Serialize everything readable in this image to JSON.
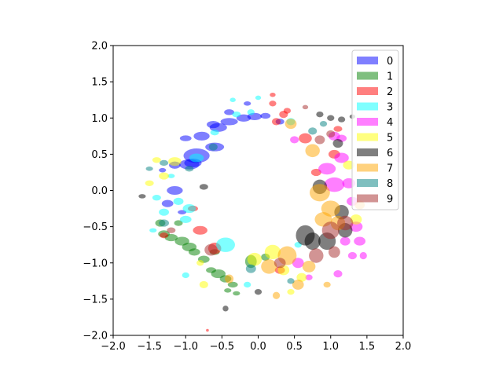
{
  "chart_data": {
    "type": "scatter",
    "title": "",
    "xlabel": "",
    "ylabel": "",
    "xlim": [
      -2.0,
      2.0
    ],
    "ylim": [
      -2.0,
      2.0
    ],
    "xticks": [
      "−2.0",
      "−1.5",
      "−1.0",
      "−0.5",
      "0.0",
      "0.5",
      "1.0",
      "1.5",
      "2.0"
    ],
    "yticks": [
      "−2.0",
      "−1.5",
      "−1.0",
      "−0.5",
      "0.0",
      "0.5",
      "1.0",
      "1.5",
      "2.0"
    ],
    "grid": false,
    "legend": {
      "placement": "top-right",
      "entries": [
        {
          "label": "0",
          "color": "#0000ff"
        },
        {
          "label": "1",
          "color": "#008000"
        },
        {
          "label": "2",
          "color": "#ff0000"
        },
        {
          "label": "3",
          "color": "#00ffff"
        },
        {
          "label": "4",
          "color": "#ff00ff"
        },
        {
          "label": "5",
          "color": "#ffff00"
        },
        {
          "label": "6",
          "color": "#000000"
        },
        {
          "label": "7",
          "color": "#ffa500"
        },
        {
          "label": "8",
          "color": "#008080"
        },
        {
          "label": "9",
          "color": "#a52a2a"
        }
      ]
    },
    "series": [
      {
        "name": "0",
        "color": "#0000ff",
        "points": [
          [
            -0.85,
            0.48,
            0.18,
            0.1
          ],
          [
            -0.95,
            0.36,
            0.14,
            0.07
          ],
          [
            -0.6,
            0.6,
            0.13,
            0.06
          ],
          [
            -0.78,
            0.75,
            0.11,
            0.06
          ],
          [
            -0.55,
            0.87,
            0.12,
            0.06
          ],
          [
            -0.4,
            0.95,
            0.12,
            0.05
          ],
          [
            -0.2,
            1.0,
            0.1,
            0.05
          ],
          [
            -0.05,
            1.02,
            0.1,
            0.05
          ],
          [
            -0.62,
            0.91,
            0.09,
            0.05
          ],
          [
            -1.0,
            0.72,
            0.08,
            0.04
          ],
          [
            -0.15,
            1.2,
            0.05,
            0.03
          ],
          [
            -1.15,
            0.35,
            0.08,
            0.05
          ],
          [
            -1.15,
            0.0,
            0.11,
            0.06
          ],
          [
            -1.25,
            -0.18,
            0.08,
            0.05
          ],
          [
            -1.05,
            -0.3,
            0.06,
            0.03
          ],
          [
            -0.9,
            0.38,
            0.12,
            0.06
          ],
          [
            -0.4,
            1.08,
            0.07,
            0.04
          ],
          [
            0.1,
            1.03,
            0.07,
            0.04
          ],
          [
            0.3,
            0.95,
            0.06,
            0.04
          ],
          [
            -1.32,
            0.28,
            0.05,
            0.03
          ]
        ]
      },
      {
        "name": "1",
        "color": "#008000",
        "points": [
          [
            -1.05,
            -0.7,
            0.1,
            0.06
          ],
          [
            -0.95,
            -0.78,
            0.1,
            0.06
          ],
          [
            -0.88,
            -0.85,
            0.08,
            0.05
          ],
          [
            -1.2,
            -0.65,
            0.09,
            0.05
          ],
          [
            -1.3,
            -0.6,
            0.08,
            0.05
          ],
          [
            -1.35,
            -0.45,
            0.07,
            0.05
          ],
          [
            -0.55,
            -1.15,
            0.1,
            0.06
          ],
          [
            -0.45,
            -1.22,
            0.08,
            0.05
          ],
          [
            -0.35,
            -1.3,
            0.07,
            0.04
          ],
          [
            -0.65,
            -1.1,
            0.07,
            0.04
          ],
          [
            -0.1,
            -0.98,
            0.08,
            0.09
          ],
          [
            0.1,
            -0.92,
            0.06,
            0.05
          ],
          [
            -0.75,
            -0.95,
            0.08,
            0.05
          ],
          [
            -0.3,
            -1.42,
            0.05,
            0.03
          ],
          [
            -1.1,
            -0.45,
            0.06,
            0.04
          ],
          [
            -0.6,
            -0.85,
            0.07,
            0.04
          ],
          [
            -0.42,
            -1.38,
            0.05,
            0.03
          ]
        ]
      },
      {
        "name": "2",
        "color": "#ff0000",
        "points": [
          [
            -0.8,
            -0.55,
            0.1,
            0.06
          ],
          [
            -0.9,
            -0.25,
            0.07,
            0.04
          ],
          [
            -0.6,
            -0.8,
            0.09,
            0.08
          ],
          [
            0.35,
            1.05,
            0.06,
            0.05
          ],
          [
            0.25,
            0.95,
            0.06,
            0.05
          ],
          [
            0.2,
            1.2,
            0.05,
            0.04
          ],
          [
            0.4,
            1.1,
            0.05,
            0.04
          ],
          [
            0.65,
            0.72,
            0.09,
            0.07
          ],
          [
            -1.3,
            -0.62,
            0.06,
            0.04
          ],
          [
            0.3,
            -1.1,
            0.07,
            0.05
          ],
          [
            1.05,
            0.5,
            0.08,
            0.06
          ],
          [
            1.1,
            0.85,
            0.06,
            0.04
          ],
          [
            0.8,
            0.25,
            0.07,
            0.05
          ],
          [
            -0.7,
            -1.93,
            0.02,
            0.02
          ],
          [
            0.2,
            1.32,
            0.04,
            0.03
          ]
        ]
      },
      {
        "name": "3",
        "color": "#00ffff",
        "points": [
          [
            -0.45,
            -0.75,
            0.13,
            0.1
          ],
          [
            -0.95,
            -0.25,
            0.09,
            0.06
          ],
          [
            -1.1,
            -0.15,
            0.07,
            0.05
          ],
          [
            -1.3,
            -0.3,
            0.07,
            0.05
          ],
          [
            -1.0,
            -0.4,
            0.08,
            0.05
          ],
          [
            -1.4,
            -0.1,
            0.06,
            0.04
          ],
          [
            -1.45,
            -0.55,
            0.05,
            0.03
          ],
          [
            -0.85,
            0.45,
            0.1,
            0.06
          ],
          [
            -0.3,
            1.05,
            0.06,
            0.04
          ],
          [
            -0.1,
            1.08,
            0.05,
            0.04
          ],
          [
            0.45,
            0.95,
            0.06,
            0.05
          ],
          [
            -1.0,
            -1.17,
            0.05,
            0.04
          ],
          [
            -0.15,
            -1.3,
            0.05,
            0.04
          ],
          [
            0.55,
            -0.75,
            0.05,
            0.04
          ],
          [
            -0.6,
            0.8,
            0.06,
            0.04
          ],
          [
            -1.2,
            0.2,
            0.05,
            0.03
          ],
          [
            -0.35,
            1.25,
            0.04,
            0.03
          ],
          [
            0.0,
            1.28,
            0.04,
            0.03
          ]
        ]
      },
      {
        "name": "4",
        "color": "#ff00ff",
        "points": [
          [
            1.05,
            0.08,
            0.14,
            0.1
          ],
          [
            0.95,
            0.3,
            0.12,
            0.08
          ],
          [
            1.15,
            0.45,
            0.1,
            0.07
          ],
          [
            1.25,
            0.1,
            0.09,
            0.07
          ],
          [
            1.3,
            -0.15,
            0.08,
            0.06
          ],
          [
            1.35,
            -0.5,
            0.09,
            0.07
          ],
          [
            1.4,
            -0.7,
            0.08,
            0.06
          ],
          [
            1.2,
            -0.7,
            0.07,
            0.06
          ],
          [
            1.05,
            0.75,
            0.08,
            0.06
          ],
          [
            1.15,
            0.72,
            0.07,
            0.05
          ],
          [
            0.55,
            -1.0,
            0.08,
            0.07
          ],
          [
            1.1,
            -1.15,
            0.06,
            0.05
          ],
          [
            0.5,
            0.7,
            0.06,
            0.05
          ],
          [
            1.3,
            -0.9,
            0.06,
            0.05
          ],
          [
            1.45,
            -0.9,
            0.05,
            0.05
          ],
          [
            0.7,
            -1.2,
            0.05,
            0.04
          ]
        ]
      },
      {
        "name": "5",
        "color": "#ffff00",
        "points": [
          [
            0.2,
            -0.85,
            0.11,
            0.1
          ],
          [
            -0.05,
            -0.95,
            0.1,
            0.09
          ],
          [
            0.35,
            -1.1,
            0.08,
            0.07
          ],
          [
            -1.15,
            0.4,
            0.09,
            0.06
          ],
          [
            -1.3,
            0.2,
            0.07,
            0.05
          ],
          [
            -1.5,
            0.1,
            0.06,
            0.04
          ],
          [
            1.25,
            0.35,
            0.08,
            0.06
          ],
          [
            1.35,
            -0.4,
            0.08,
            0.07
          ],
          [
            0.6,
            -1.2,
            0.07,
            0.06
          ],
          [
            -0.75,
            -1.3,
            0.06,
            0.05
          ],
          [
            -0.8,
            -1.0,
            0.05,
            0.04
          ],
          [
            0.45,
            -1.4,
            0.05,
            0.04
          ],
          [
            -1.4,
            0.42,
            0.06,
            0.04
          ]
        ]
      },
      {
        "name": "6",
        "color": "#000000",
        "points": [
          [
            0.65,
            -0.62,
            0.13,
            0.14
          ],
          [
            0.75,
            -0.7,
            0.11,
            0.12
          ],
          [
            0.95,
            -0.7,
            0.12,
            0.12
          ],
          [
            1.2,
            -0.55,
            0.1,
            0.1
          ],
          [
            1.15,
            -0.3,
            0.1,
            0.1
          ],
          [
            0.85,
            0.05,
            0.1,
            0.1
          ],
          [
            1.1,
            0.65,
            0.07,
            0.06
          ],
          [
            0.85,
            1.05,
            0.05,
            0.04
          ],
          [
            1.0,
            1.0,
            0.05,
            0.04
          ],
          [
            1.15,
            0.98,
            0.05,
            0.04
          ],
          [
            0.0,
            -1.4,
            0.05,
            0.04
          ],
          [
            -0.45,
            -1.63,
            0.04,
            0.04
          ],
          [
            -0.75,
            0.05,
            0.06,
            0.04
          ],
          [
            -1.6,
            -0.08,
            0.05,
            0.03
          ],
          [
            1.3,
            1.02,
            0.04,
            0.03
          ]
        ]
      },
      {
        "name": "7",
        "color": "#ffa500",
        "points": [
          [
            0.85,
            -0.03,
            0.14,
            0.12
          ],
          [
            1.0,
            -0.25,
            0.13,
            0.11
          ],
          [
            0.9,
            -0.4,
            0.12,
            0.1
          ],
          [
            0.75,
            0.55,
            0.1,
            0.09
          ],
          [
            0.4,
            -0.9,
            0.13,
            0.13
          ],
          [
            0.15,
            -1.05,
            0.11,
            0.1
          ],
          [
            0.55,
            -1.3,
            0.08,
            0.07
          ],
          [
            1.1,
            -0.45,
            0.1,
            0.1
          ],
          [
            0.45,
            0.92,
            0.08,
            0.07
          ],
          [
            -0.4,
            -1.22,
            0.06,
            0.06
          ],
          [
            0.7,
            -1.05,
            0.09,
            0.08
          ],
          [
            0.25,
            -1.45,
            0.05,
            0.05
          ],
          [
            0.95,
            -1.3,
            0.05,
            0.04
          ],
          [
            1.4,
            -0.2,
            0.07,
            0.06
          ]
        ]
      },
      {
        "name": "8",
        "color": "#008080",
        "points": [
          [
            -0.62,
            0.6,
            0.06,
            0.05
          ],
          [
            -1.3,
            -0.45,
            0.07,
            0.05
          ],
          [
            -1.3,
            0.38,
            0.06,
            0.04
          ],
          [
            0.75,
            0.82,
            0.06,
            0.05
          ],
          [
            -0.1,
            -1.08,
            0.07,
            0.06
          ],
          [
            0.9,
            0.92,
            0.05,
            0.04
          ],
          [
            -1.5,
            0.3,
            0.05,
            0.03
          ],
          [
            0.45,
            -1.25,
            0.05,
            0.04
          ],
          [
            -0.95,
            0.3,
            0.06,
            0.04
          ]
        ]
      },
      {
        "name": "9",
        "color": "#a52a2a",
        "points": [
          [
            1.0,
            -0.55,
            0.12,
            0.12
          ],
          [
            1.2,
            -0.45,
            0.11,
            0.1
          ],
          [
            0.8,
            -0.9,
            0.1,
            0.1
          ],
          [
            -0.65,
            -0.82,
            0.09,
            0.08
          ],
          [
            1.05,
            -0.85,
            0.08,
            0.08
          ],
          [
            0.3,
            -1.0,
            0.08,
            0.07
          ],
          [
            0.85,
            0.7,
            0.07,
            0.06
          ],
          [
            1.0,
            0.78,
            0.06,
            0.05
          ],
          [
            -1.2,
            -0.55,
            0.06,
            0.04
          ],
          [
            0.65,
            1.15,
            0.04,
            0.03
          ]
        ]
      }
    ]
  }
}
